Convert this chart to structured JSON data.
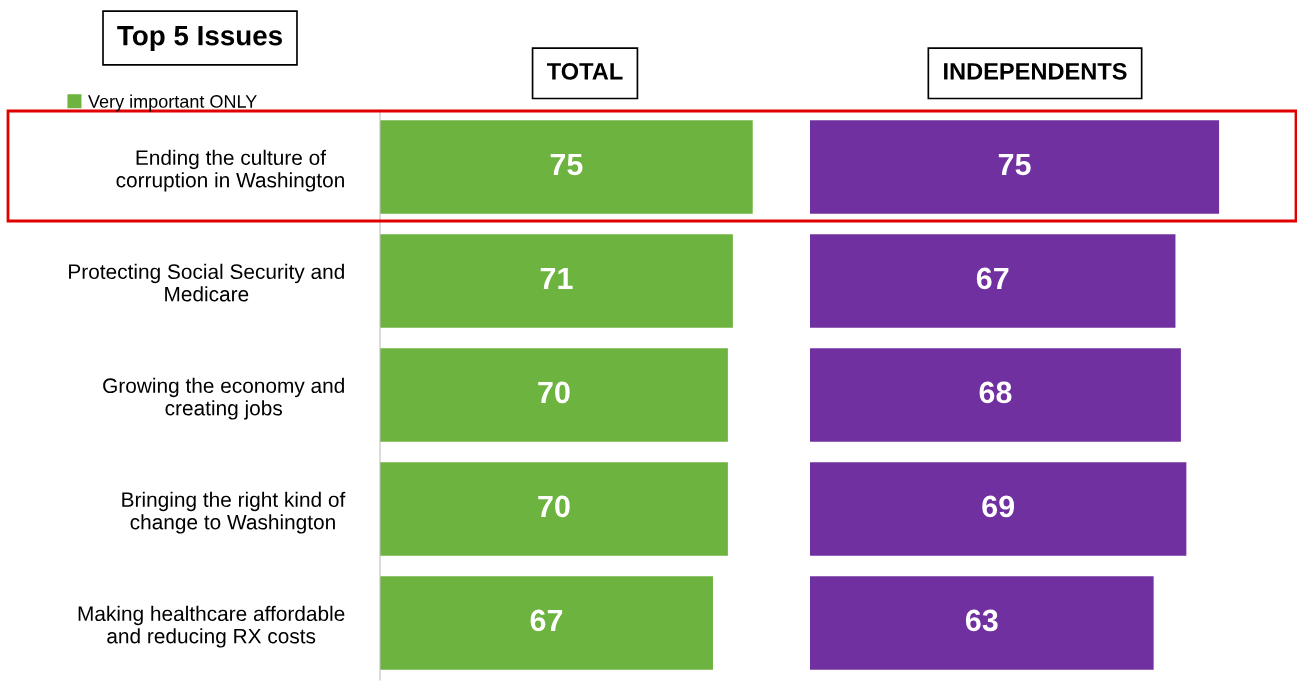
{
  "chart_data": [
    {
      "type": "bar",
      "orientation": "horizontal",
      "title": "TOTAL",
      "annotations": [
        "Top 5 Issues"
      ],
      "legend": "top left",
      "tick_labels": "y",
      "data_labels": true,
      "categories": [
        "Ending the culture of\ncorruption in Washington",
        "Protecting Social Security and\nMedicare",
        "Growing the economy and\ncreating jobs",
        "Bringing the right kind of\nchange to Washington",
        "Making healthcare affordable\nand reducing RX costs"
      ],
      "series": [
        {
          "name": "Very important ONLY",
          "color": "#6db33f",
          "values": [
            75,
            71,
            70,
            70,
            67
          ]
        }
      ]
    },
    {
      "type": "bar",
      "orientation": "horizontal",
      "title": "INDEPENDENTS",
      "tick_labels": false,
      "data_labels": true,
      "categories": [
        null,
        null,
        null,
        null,
        null
      ],
      "series": [
        {
          "color": "#7030a0",
          "values": [
            75,
            67,
            68,
            69,
            63
          ]
        }
      ]
    }
  ]
}
